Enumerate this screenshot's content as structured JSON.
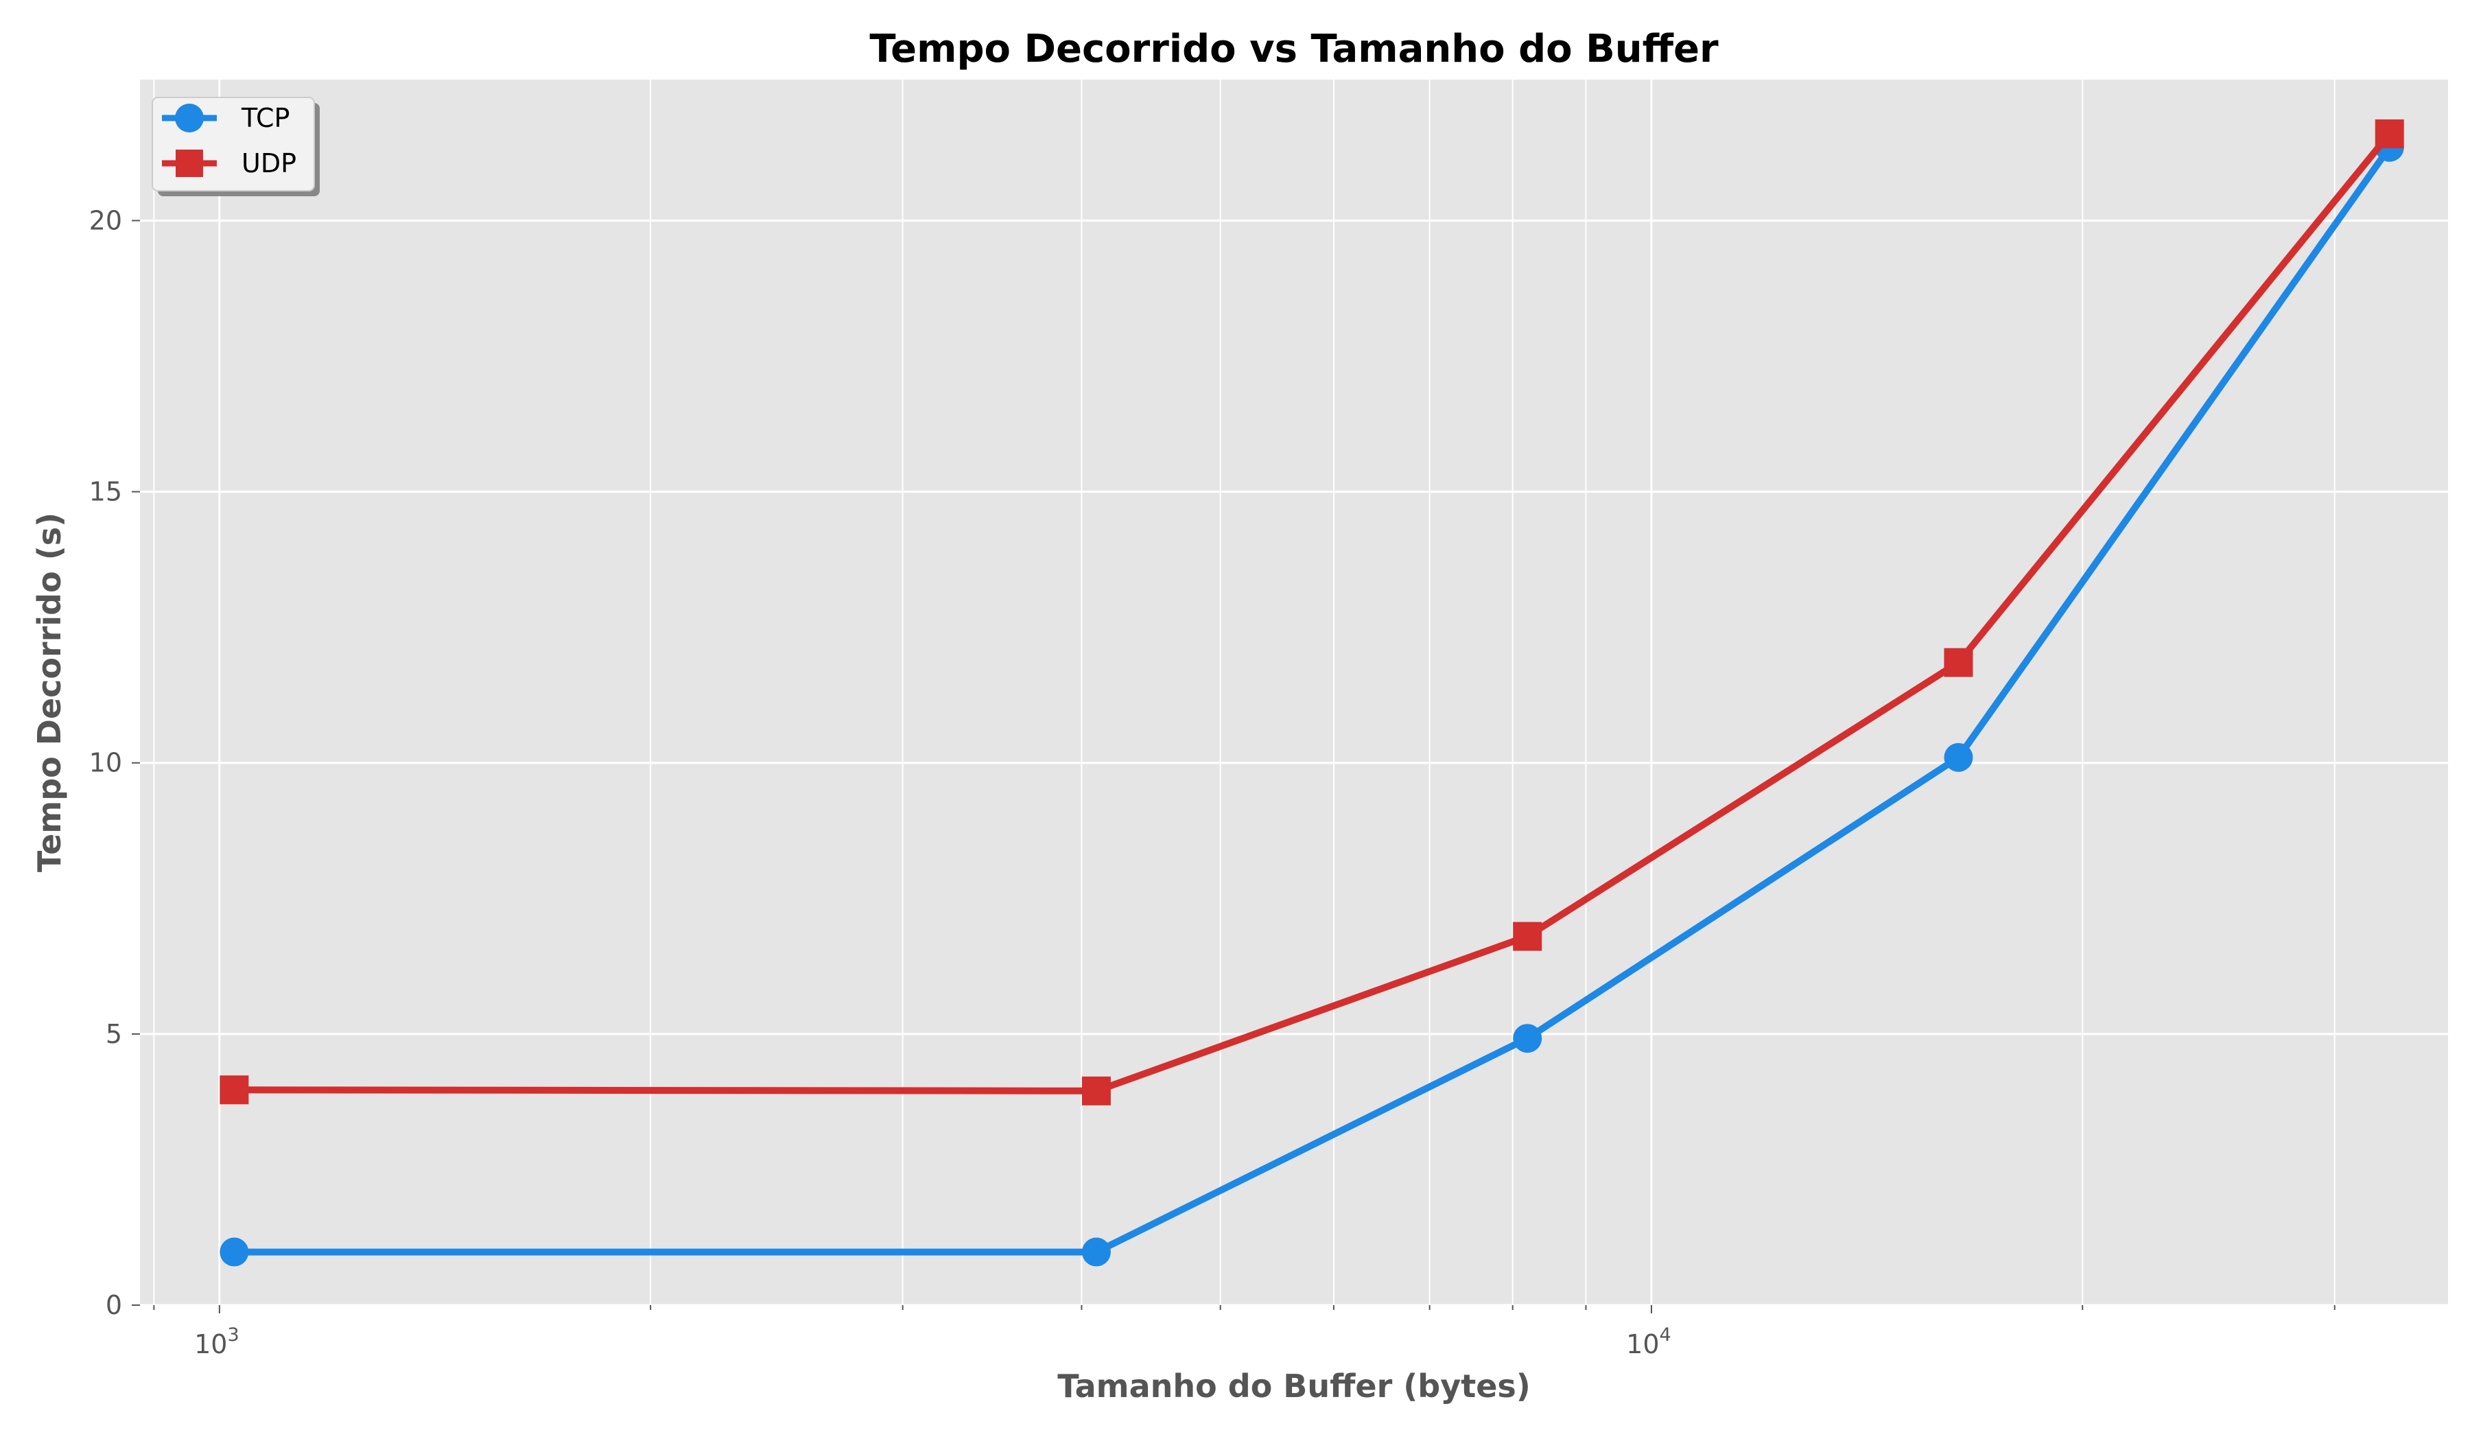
{
  "chart_data": {
    "type": "line",
    "title": "Tempo Decorrido vs Tamanho do Buffer",
    "xlabel": "Tamanho do Buffer (bytes)",
    "ylabel": "Tempo Decorrido (s)",
    "xscale": "log",
    "xlim": [
      880,
      36000
    ],
    "ylim": [
      0,
      22.6
    ],
    "x": [
      1024,
      4096,
      8192,
      16384,
      32768
    ],
    "x_ticks": [
      {
        "value": 1000,
        "base": "10",
        "exp": "3"
      },
      {
        "value": 10000,
        "base": "10",
        "exp": "4"
      }
    ],
    "y_ticks": [
      0,
      5,
      10,
      15,
      20
    ],
    "grid": true,
    "legend_position": "top-left",
    "series": [
      {
        "name": "TCP",
        "color": "#1e88e5",
        "marker": "circle",
        "values": [
          0.98,
          0.98,
          4.92,
          10.1,
          21.35
        ]
      },
      {
        "name": "UDP",
        "color": "#d32f2f",
        "marker": "square",
        "values": [
          3.97,
          3.95,
          6.8,
          11.85,
          21.6
        ]
      }
    ],
    "colors": {
      "plot_background": "#e5e5e5",
      "grid": "#ffffff"
    }
  }
}
